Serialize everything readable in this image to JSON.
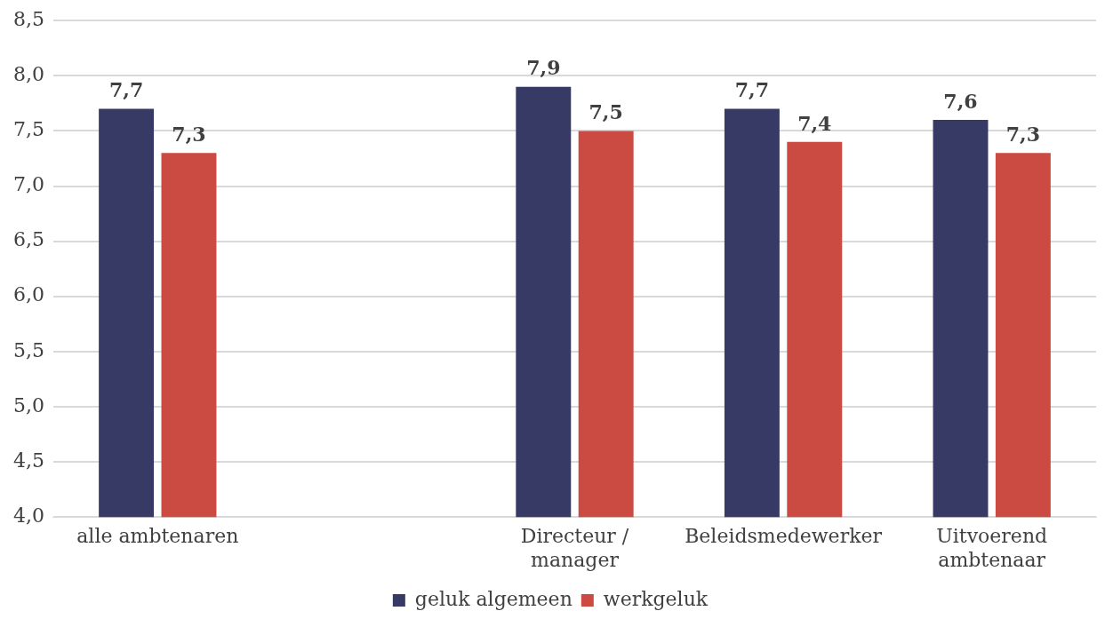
{
  "chart_data": {
    "type": "bar",
    "categories": [
      "alle ambtenaren",
      null,
      "Directeur / manager",
      "Beleidsmedewerker",
      "Uitvoerend ambtenaar"
    ],
    "series": [
      {
        "name": "geluk algemeen",
        "color": "#363a64",
        "values": [
          7.7,
          null,
          7.9,
          7.7,
          7.6
        ],
        "value_labels": [
          "7,7",
          null,
          "7,9",
          "7,7",
          "7,6"
        ]
      },
      {
        "name": "werkgeluk",
        "color": "#cb4b42",
        "values": [
          7.3,
          null,
          7.5,
          7.4,
          7.3
        ],
        "value_labels": [
          "7,3",
          null,
          "7,5",
          "7,4",
          "7,3"
        ]
      }
    ],
    "ylim": [
      4,
      8.5
    ],
    "yticks": [
      {
        "value": 4,
        "label": "4,0"
      },
      {
        "value": 4.5,
        "label": "4,5"
      },
      {
        "value": 5,
        "label": "5,0"
      },
      {
        "value": 5.5,
        "label": "5,5"
      },
      {
        "value": 6,
        "label": "6,0"
      },
      {
        "value": 6.5,
        "label": "6,5"
      },
      {
        "value": 7,
        "label": "7,0"
      },
      {
        "value": 7.5,
        "label": "7,5"
      },
      {
        "value": 8,
        "label": "8,0"
      },
      {
        "value": 8.5,
        "label": "8,5"
      }
    ],
    "grid": "y",
    "legend": "bottom",
    "data_labels": true
  }
}
